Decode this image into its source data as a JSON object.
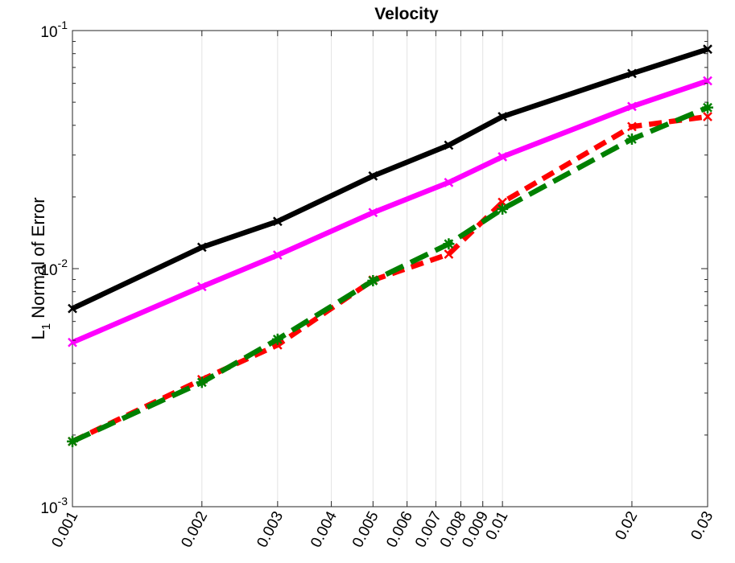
{
  "chart_data": {
    "type": "line",
    "title": "Velocity",
    "ylabel_main": "L",
    "ylabel_sub": "1",
    "ylabel_rest": " Normal of Error",
    "xlabel": "",
    "xscale": "log",
    "yscale": "log",
    "xlim": [
      0.001,
      0.03
    ],
    "ylim": [
      0.001,
      0.1
    ],
    "grid": "x-major",
    "x_ticks": [
      {
        "value": 0.001,
        "label": "0.001"
      },
      {
        "value": 0.002,
        "label": "0.002"
      },
      {
        "value": 0.003,
        "label": "0.003"
      },
      {
        "value": 0.004,
        "label": "0.004"
      },
      {
        "value": 0.005,
        "label": "0.005"
      },
      {
        "value": 0.006,
        "label": "0.006"
      },
      {
        "value": 0.007,
        "label": "0.007"
      },
      {
        "value": 0.008,
        "label": "0.008"
      },
      {
        "value": 0.009,
        "label": "0.009"
      },
      {
        "value": 0.01,
        "label": "0.01"
      },
      {
        "value": 0.02,
        "label": "0.02"
      },
      {
        "value": 0.03,
        "label": "0.03"
      }
    ],
    "y_ticks": [
      {
        "value": 0.001,
        "base": "10",
        "exp": "-3"
      },
      {
        "value": 0.01,
        "base": "10",
        "exp": "-2"
      },
      {
        "value": 0.1,
        "base": "10",
        "exp": "-1"
      }
    ],
    "series": [
      {
        "color": "#000000",
        "dash": "solid",
        "marker": "x",
        "x": [
          0.001,
          0.002,
          0.003,
          0.005,
          0.0075,
          0.01,
          0.02,
          0.03
        ],
        "y": [
          0.0068,
          0.0123,
          0.0158,
          0.0245,
          0.033,
          0.0435,
          0.066,
          0.0835
        ]
      },
      {
        "color": "#ff00ff",
        "dash": "solid",
        "marker": "x",
        "x": [
          0.001,
          0.002,
          0.003,
          0.005,
          0.0075,
          0.01,
          0.02,
          0.03
        ],
        "y": [
          0.0049,
          0.0084,
          0.0114,
          0.0172,
          0.023,
          0.0295,
          0.048,
          0.0615
        ]
      },
      {
        "color": "#ff0000",
        "dash": "dash",
        "marker": "x",
        "x": [
          0.001,
          0.002,
          0.003,
          0.005,
          0.0075,
          0.01,
          0.02,
          0.03
        ],
        "y": [
          0.00188,
          0.00342,
          0.00478,
          0.00895,
          0.0115,
          0.019,
          0.0395,
          0.0435
        ]
      },
      {
        "color": "#008000",
        "dash": "longdash",
        "marker": "asterisk",
        "x": [
          0.001,
          0.002,
          0.003,
          0.005,
          0.0075,
          0.01,
          0.02,
          0.03
        ],
        "y": [
          0.00188,
          0.00333,
          0.00505,
          0.0089,
          0.0127,
          0.0178,
          0.035,
          0.0475
        ]
      }
    ]
  }
}
